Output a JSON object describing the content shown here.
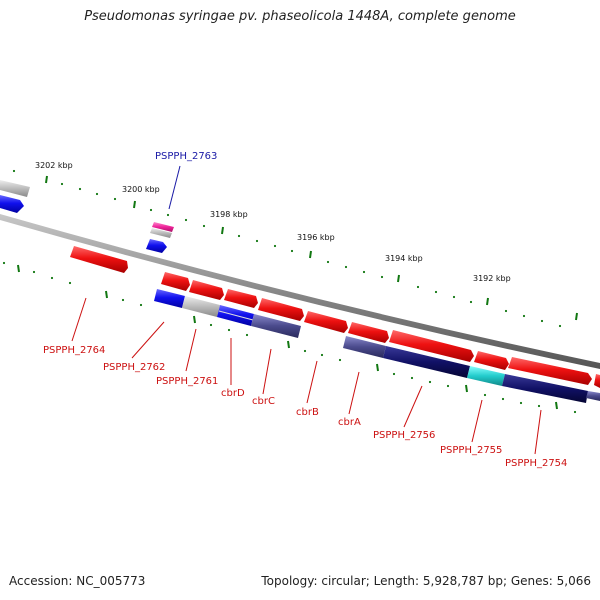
{
  "title": "Pseudomonas syringae pv. phaseolicola 1448A, complete genome",
  "footer": {
    "accession": "Accession: NC_005773",
    "summary": "Topology: circular; Length: 5,928,787 bp; Genes: 5,066"
  },
  "ruler_labels": [
    "3202 kbp",
    "3200 kbp",
    "3198 kbp",
    "3196 kbp",
    "3194 kbp",
    "3192 kbp"
  ],
  "gene_labels": [
    {
      "text": "PSPPH_2763",
      "color": "#1a1aa6"
    },
    {
      "text": "PSPPH_2764",
      "color": "#cc1111"
    },
    {
      "text": "PSPPH_2762",
      "color": "#cc1111"
    },
    {
      "text": "PSPPH_2761",
      "color": "#cc1111"
    },
    {
      "text": "cbrD",
      "color": "#cc1111"
    },
    {
      "text": "cbrC",
      "color": "#cc1111"
    },
    {
      "text": "cbrB",
      "color": "#cc1111"
    },
    {
      "text": "cbrA",
      "color": "#cc1111"
    },
    {
      "text": "PSPPH_2756",
      "color": "#cc1111"
    },
    {
      "text": "PSPPH_2755",
      "color": "#cc1111"
    },
    {
      "text": "PSPPH_2754",
      "color": "#cc1111"
    }
  ],
  "colors": {
    "forward_gene": "#ee1111",
    "reverse_gene": "#1111ee",
    "pseudo_gene": "#bbbbbb",
    "backbone": "#888888",
    "tick": "#117711",
    "domain_navy": "#111166",
    "domain_slate": "#4a4a8c",
    "domain_cyan": "#22cccc",
    "domain_magenta": "#ee2299"
  }
}
